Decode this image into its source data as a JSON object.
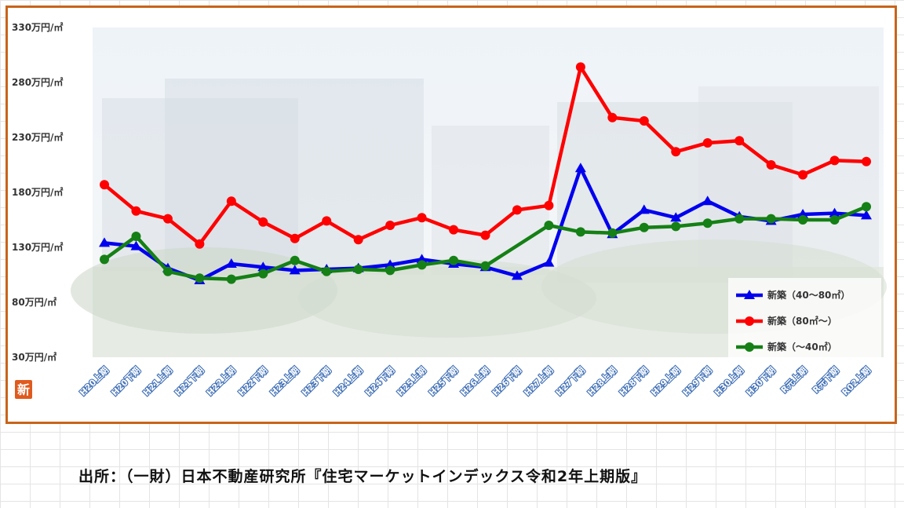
{
  "chart_data": {
    "type": "line",
    "y_tick_labels": [
      "330万円/㎡",
      "280万円/㎡",
      "230万円/㎡",
      "180万円/㎡",
      "130万円/㎡",
      "80万円/㎡",
      "30万円/㎡"
    ],
    "ylim": [
      30,
      330
    ],
    "categories": [
      "H20上期",
      "H20下期",
      "H21上期",
      "H21下期",
      "H22上期",
      "H22下期",
      "H23上期",
      "H23下期",
      "H24上期",
      "H24下期",
      "H25上期",
      "H25下期",
      "H26上期",
      "H26下期",
      "H27上期",
      "H27下期",
      "H28上期",
      "H28下期",
      "H29上期",
      "H29下期",
      "H30上期",
      "H30下期",
      "R元上期",
      "R元下期",
      "R02上期"
    ],
    "series": [
      {
        "name": "新築（40～80㎡）",
        "color": "#0000ee",
        "marker": "triangle",
        "values": [
          134,
          131,
          111,
          100,
          115,
          112,
          109,
          110,
          111,
          114,
          119,
          115,
          112,
          104,
          116,
          202,
          142,
          164,
          157,
          172,
          158,
          154,
          160,
          161,
          159
        ]
      },
      {
        "name": "新築（80㎡～）",
        "color": "#ff0000",
        "marker": "circle",
        "values": [
          187,
          163,
          156,
          133,
          172,
          153,
          138,
          154,
          137,
          150,
          157,
          146,
          141,
          164,
          168,
          294,
          248,
          245,
          217,
          225,
          227,
          205,
          196,
          209,
          208
        ]
      },
      {
        "name": "新築（～40㎡）",
        "color": "#158015",
        "marker": "circle",
        "values": [
          119,
          140,
          108,
          102,
          101,
          106,
          118,
          108,
          110,
          109,
          114,
          118,
          113,
          null,
          150,
          144,
          143,
          148,
          149,
          152,
          156,
          156,
          155,
          155,
          167
        ]
      }
    ],
    "legend_position": "bottom-right",
    "grid": false
  },
  "badge": {
    "text": "新",
    "color": "#e05a1e"
  },
  "source_note": "出所：（一財）日本不動産研究所『住宅マーケットインデックス令和2年上期版』"
}
